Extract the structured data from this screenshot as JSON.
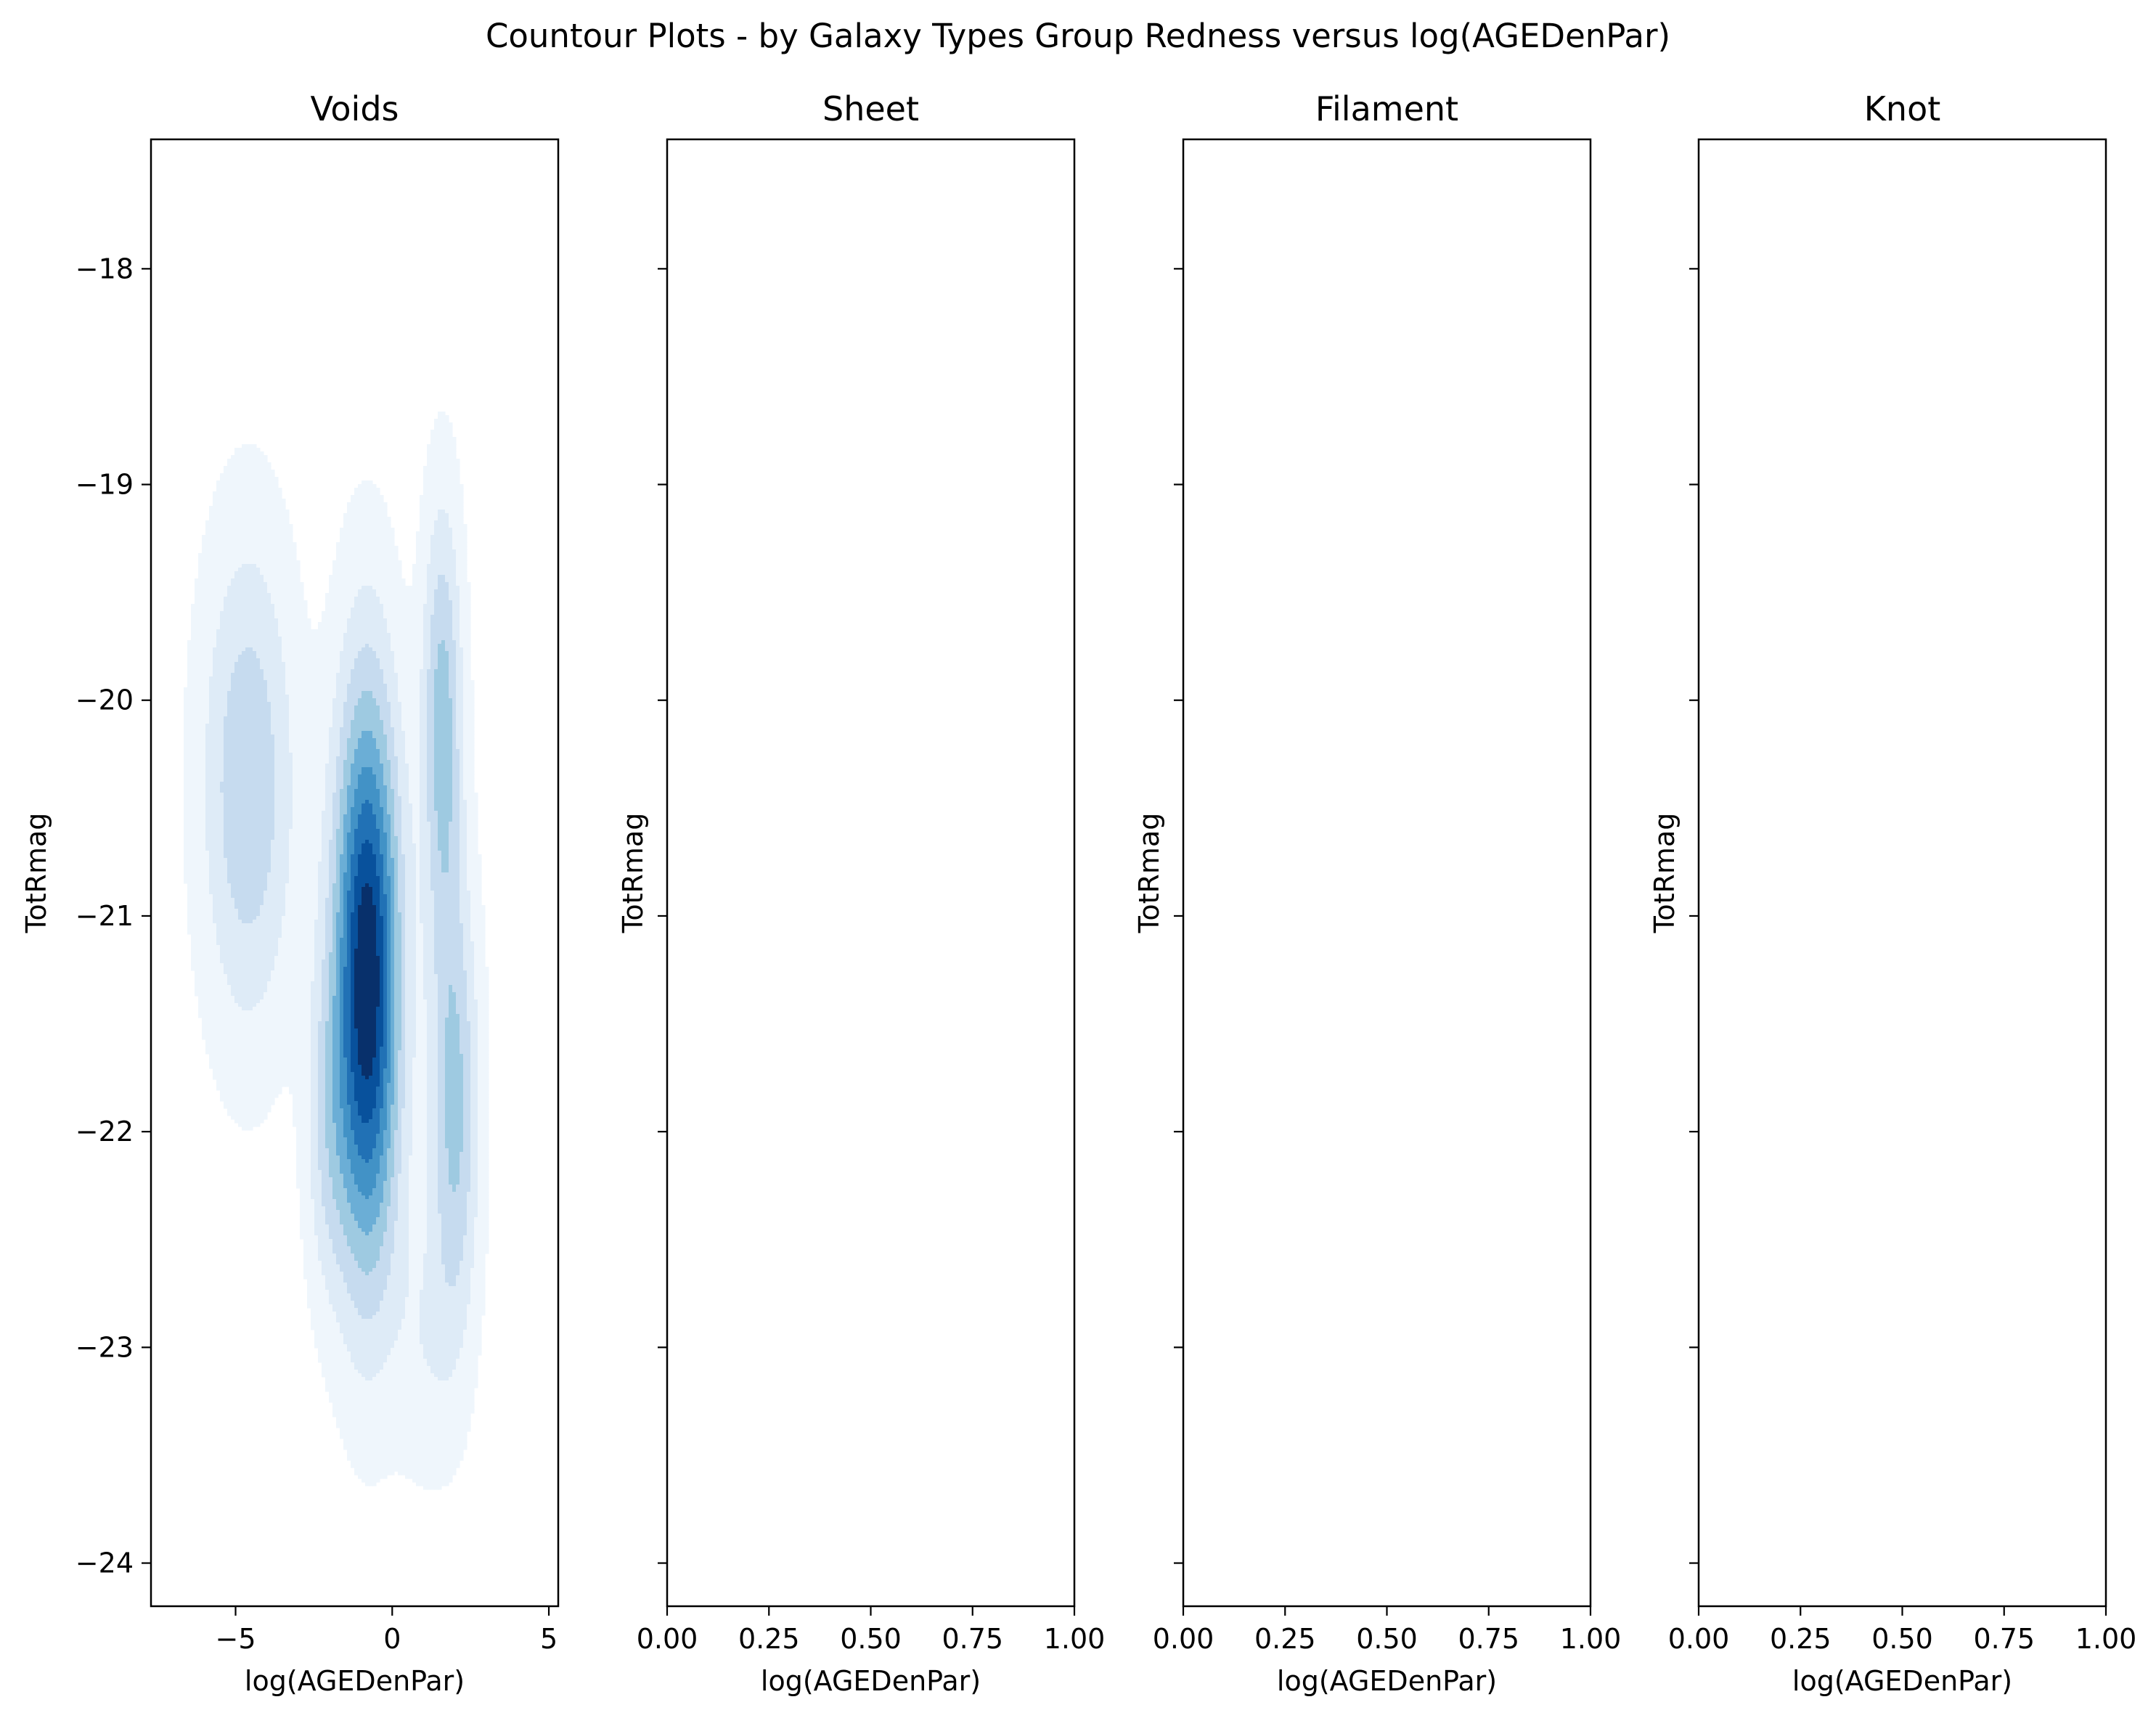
{
  "figure": {
    "title": "Countour Plots - by Galaxy Types Group Redness versus log(AGEDenPar)"
  },
  "chart_data": [
    {
      "type": "contour",
      "title": "Voids",
      "xlabel": "log(AGEDenPar)",
      "ylabel": "TotRmag",
      "xlim": [
        -7.7,
        5.3
      ],
      "ylim": [
        -24.2,
        -17.4
      ],
      "y_inverted": false,
      "xticks": [
        -5,
        0,
        5
      ],
      "xtick_labels": [
        "−5",
        "0",
        "5"
      ],
      "yticks": [
        -18,
        -19,
        -20,
        -21,
        -22,
        -23,
        -24
      ],
      "ytick_labels": [
        "−18",
        "−19",
        "−20",
        "−21",
        "−22",
        "−23",
        "−24"
      ],
      "colormap": [
        "#eff6fc",
        "#deebf7",
        "#c6dbef",
        "#9ecae1",
        "#6baed6",
        "#4292c6",
        "#2171b5",
        "#08519c",
        "#08306b"
      ],
      "density_peaks": [
        {
          "x": -0.8,
          "y": -21.3,
          "sx": 0.75,
          "sy": 0.95,
          "weight": 1.0
        },
        {
          "x": -4.6,
          "y": -20.4,
          "sx": 1.05,
          "sy": 0.8,
          "weight": 0.36
        },
        {
          "x": 1.6,
          "y": -20.1,
          "sx": 0.45,
          "sy": 0.7,
          "weight": 0.42
        },
        {
          "x": 2.0,
          "y": -21.9,
          "sx": 0.55,
          "sy": 0.75,
          "weight": 0.4
        },
        {
          "x": -2.1,
          "y": -22.0,
          "sx": 0.5,
          "sy": 0.55,
          "weight": 0.2
        },
        {
          "x": 1.0,
          "y": -23.0,
          "sx": 0.7,
          "sy": 0.45,
          "weight": 0.12
        }
      ]
    },
    {
      "type": "contour",
      "title": "Sheet",
      "xlabel": "log(AGEDenPar)",
      "ylabel": "TotRmag",
      "xlim": [
        0.0,
        1.0
      ],
      "xticks": [
        0.0,
        0.25,
        0.5,
        0.75,
        1.0
      ],
      "xtick_labels": [
        "0.00",
        "0.25",
        "0.50",
        "0.75",
        "1.00"
      ],
      "y_shared": true,
      "empty": true
    },
    {
      "type": "contour",
      "title": "Filament",
      "xlabel": "log(AGEDenPar)",
      "ylabel": "TotRmag",
      "xlim": [
        0.0,
        1.0
      ],
      "xticks": [
        0.0,
        0.25,
        0.5,
        0.75,
        1.0
      ],
      "xtick_labels": [
        "0.00",
        "0.25",
        "0.50",
        "0.75",
        "1.00"
      ],
      "y_shared": true,
      "empty": true
    },
    {
      "type": "contour",
      "title": "Knot",
      "xlabel": "log(AGEDenPar)",
      "ylabel": "TotRmag",
      "xlim": [
        0.0,
        1.0
      ],
      "xticks": [
        0.0,
        0.25,
        0.5,
        0.75,
        1.0
      ],
      "xtick_labels": [
        "0.00",
        "0.25",
        "0.50",
        "0.75",
        "1.00"
      ],
      "y_shared": true,
      "empty": true
    }
  ]
}
